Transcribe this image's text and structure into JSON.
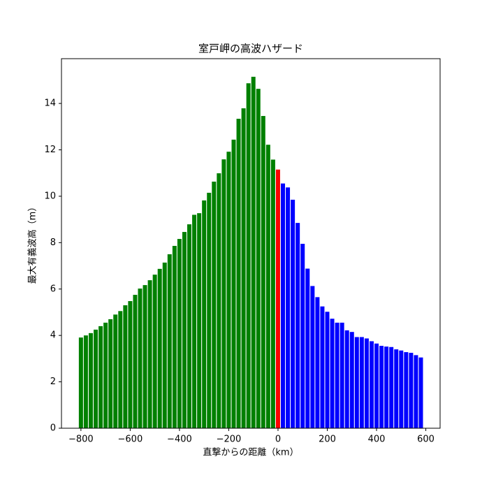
{
  "chart_data": {
    "type": "bar",
    "title": "室戸岬の高波ハザード",
    "x_label": "直撃からの距離（km）",
    "y_label": "最大有義波高（m）",
    "series": [
      {
        "color": "#008000",
        "x": [
          -800,
          -780,
          -760,
          -740,
          -720,
          -700,
          -680,
          -660,
          -640,
          -620,
          -600,
          -580,
          -560,
          -540,
          -520,
          -500,
          -480,
          -460,
          -440,
          -420,
          -400,
          -380,
          -360,
          -340,
          -320,
          -300,
          -280,
          -260,
          -240,
          -220,
          -200,
          -180,
          -160,
          -140,
          -120,
          -100,
          -80,
          -60,
          -40,
          -20
        ],
        "values": [
          3.91,
          4.0,
          4.1,
          4.25,
          4.4,
          4.55,
          4.7,
          4.9,
          5.05,
          5.3,
          5.48,
          5.75,
          6.02,
          6.17,
          6.38,
          6.62,
          6.87,
          7.14,
          7.5,
          7.86,
          8.16,
          8.46,
          8.79,
          9.2,
          9.27,
          9.82,
          10.15,
          10.63,
          10.99,
          11.59,
          11.92,
          12.44,
          13.34,
          13.79,
          14.87,
          15.15,
          14.63,
          13.46,
          12.22,
          11.58
        ]
      },
      {
        "color": "#ff0000",
        "x": [
          0
        ],
        "values": [
          11.15
        ]
      },
      {
        "color": "#0000ff",
        "x": [
          20,
          40,
          60,
          80,
          100,
          120,
          140,
          160,
          180,
          200,
          220,
          240,
          260,
          280,
          300,
          320,
          340,
          360,
          380,
          400,
          420,
          440,
          460,
          480,
          500,
          520,
          540,
          560,
          580
        ],
        "values": [
          10.55,
          10.38,
          9.85,
          8.85,
          7.95,
          6.88,
          6.13,
          5.65,
          5.25,
          5.02,
          4.72,
          4.55,
          4.55,
          4.22,
          4.15,
          3.93,
          3.93,
          3.87,
          3.75,
          3.65,
          3.55,
          3.52,
          3.5,
          3.4,
          3.35,
          3.28,
          3.25,
          3.15,
          3.05
        ]
      }
    ],
    "xlim": [
      -879,
      658
    ],
    "xticks": [
      {
        "value": -800,
        "label": "−800"
      },
      {
        "value": -600,
        "label": "−600"
      },
      {
        "value": -400,
        "label": "−400"
      },
      {
        "value": -200,
        "label": "−200"
      },
      0,
      200,
      400,
      600
    ],
    "ylim": [
      0,
      15.93
    ],
    "yticks": [
      0,
      2,
      4,
      6,
      8,
      10,
      12,
      14
    ]
  }
}
